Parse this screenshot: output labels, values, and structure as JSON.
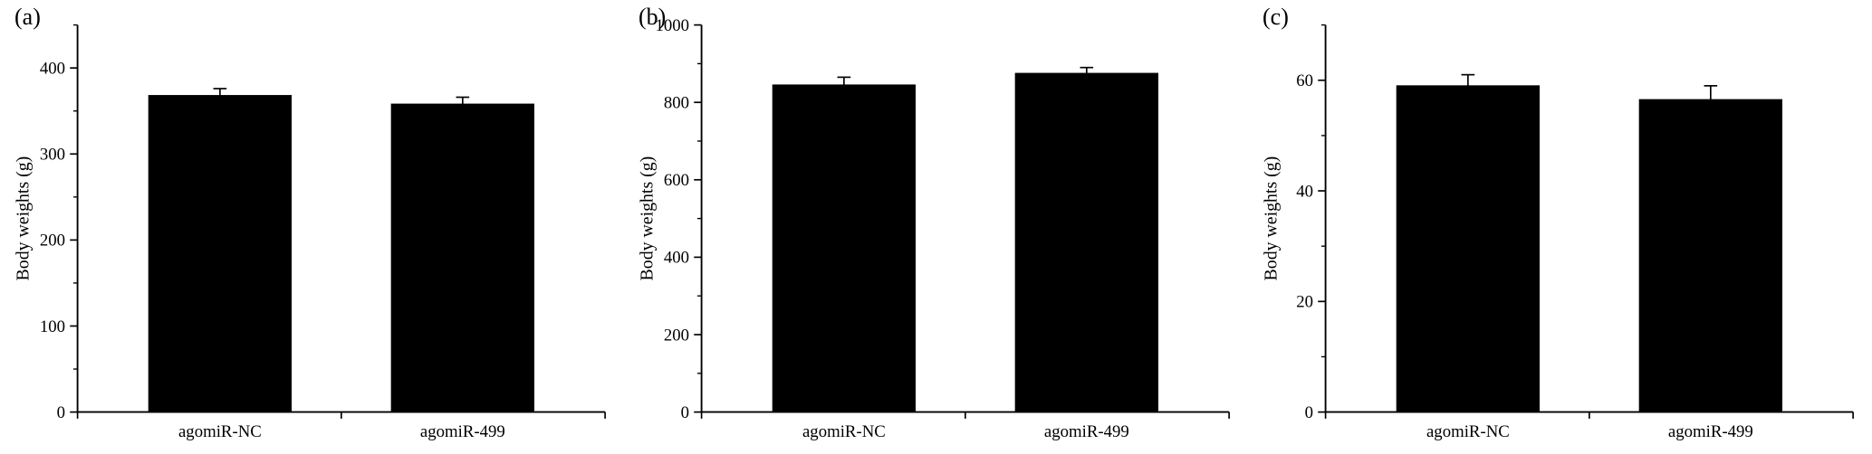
{
  "figure": {
    "background": "#ffffff",
    "bar_color": "#000000",
    "axis_color": "#000000",
    "text_color": "#000000"
  },
  "chart_data": [
    {
      "type": "bar",
      "panel_label": "(a)",
      "title": "",
      "xlabel": "",
      "ylabel": "Body weights (g)",
      "categories": [
        "agomiR-NC",
        "agomiR-499"
      ],
      "values": [
        368,
        358
      ],
      "errors": [
        8,
        8
      ],
      "ylim": [
        0,
        450
      ],
      "yticks": [
        0,
        100,
        200,
        300,
        400
      ],
      "minor_step": 50,
      "grid": false,
      "legend": "none"
    },
    {
      "type": "bar",
      "panel_label": "(b)",
      "title": "",
      "xlabel": "",
      "ylabel": "Body weights (g)",
      "categories": [
        "agomiR-NC",
        "agomiR-499"
      ],
      "values": [
        845,
        875
      ],
      "errors": [
        20,
        15
      ],
      "ylim": [
        0,
        1000
      ],
      "yticks": [
        0,
        200,
        400,
        600,
        800,
        1000
      ],
      "minor_step": 100,
      "grid": false,
      "legend": "none"
    },
    {
      "type": "bar",
      "panel_label": "(c)",
      "title": "",
      "xlabel": "",
      "ylabel": "Body weights (g)",
      "categories": [
        "agomiR-NC",
        "agomiR-499"
      ],
      "values": [
        59,
        56.5
      ],
      "errors": [
        2,
        2.5
      ],
      "ylim": [
        0,
        70
      ],
      "yticks": [
        0,
        20,
        40,
        60
      ],
      "minor_step": 10,
      "grid": false,
      "legend": "none"
    }
  ]
}
